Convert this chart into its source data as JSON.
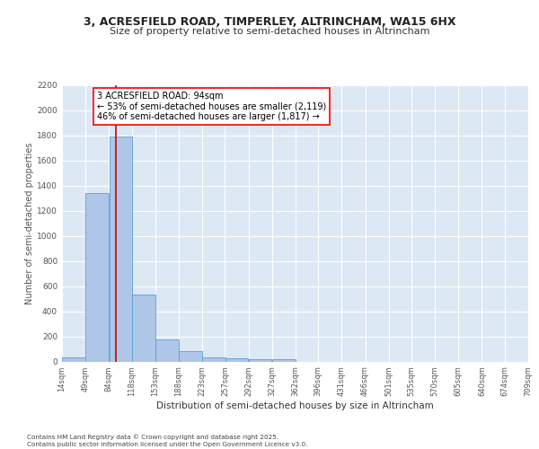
{
  "title1": "3, ACRESFIELD ROAD, TIMPERLEY, ALTRINCHAM, WA15 6HX",
  "title2": "Size of property relative to semi-detached houses in Altrincham",
  "xlabel": "Distribution of semi-detached houses by size in Altrincham",
  "ylabel": "Number of semi-detached properties",
  "bar_color": "#aec6e8",
  "bar_edge_color": "#5a9fd4",
  "background_color": "#dde8f5",
  "vline_color": "#cc0000",
  "annotation_line1": "3 ACRESFIELD ROAD: 94sqm",
  "annotation_line2": "← 53% of semi-detached houses are smaller (2,119)",
  "annotation_line3": "46% of semi-detached houses are larger (1,817) →",
  "vline_x": 94,
  "bin_edges": [
    14,
    49,
    84,
    118,
    153,
    188,
    223,
    257,
    292,
    327,
    362,
    396,
    431,
    466,
    501,
    535,
    570,
    605,
    640,
    674,
    709
  ],
  "bar_heights": [
    30,
    1340,
    1790,
    535,
    175,
    80,
    35,
    25,
    20,
    15,
    0,
    0,
    0,
    0,
    0,
    0,
    0,
    0,
    0,
    0
  ],
  "tick_labels": [
    "14sqm",
    "49sqm",
    "84sqm",
    "118sqm",
    "153sqm",
    "188sqm",
    "223sqm",
    "257sqm",
    "292sqm",
    "327sqm",
    "362sqm",
    "396sqm",
    "431sqm",
    "466sqm",
    "501sqm",
    "535sqm",
    "570sqm",
    "605sqm",
    "640sqm",
    "674sqm",
    "709sqm"
  ],
  "ylim": [
    0,
    2200
  ],
  "yticks": [
    0,
    200,
    400,
    600,
    800,
    1000,
    1200,
    1400,
    1600,
    1800,
    2000,
    2200
  ],
  "footer": "Contains HM Land Registry data © Crown copyright and database right 2025.\nContains public sector information licensed under the Open Government Licence v3.0.",
  "title_fontsize": 9,
  "subtitle_fontsize": 8,
  "annotation_fontsize": 7,
  "axis_label_fontsize": 7.5,
  "tick_fontsize": 6,
  "ylabel_fontsize": 7
}
